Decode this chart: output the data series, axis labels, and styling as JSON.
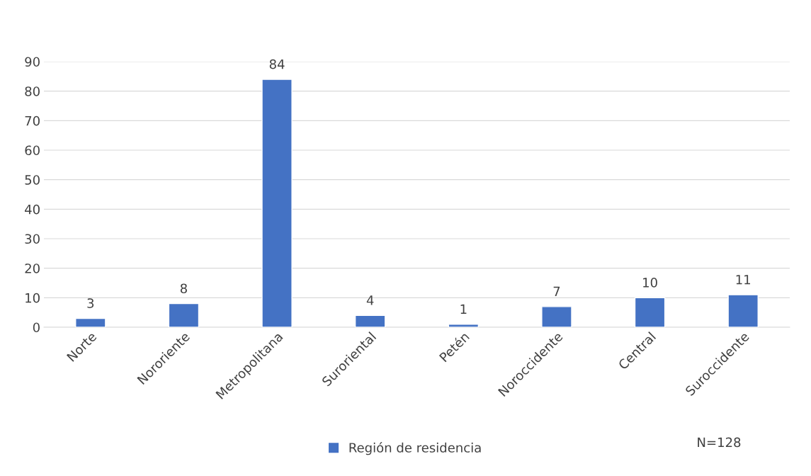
{
  "chart_data": {
    "type": "bar",
    "categories": [
      "Norte",
      "Nororiente",
      "Metropolitana",
      "Suroriental",
      "Petén",
      "Noroccidente",
      "Central",
      "Suroccidente"
    ],
    "series": [
      {
        "name": "Región de residencia",
        "color": "#4472c4",
        "values": [
          3,
          8,
          84,
          4,
          1,
          7,
          10,
          11
        ]
      }
    ],
    "ylim": [
      0,
      90
    ],
    "yticks": [
      0,
      10,
      20,
      30,
      40,
      50,
      60,
      70,
      80,
      90
    ],
    "grid": "y",
    "legend": "bottom",
    "data_labels": true,
    "annotations": [
      "N=128"
    ]
  }
}
